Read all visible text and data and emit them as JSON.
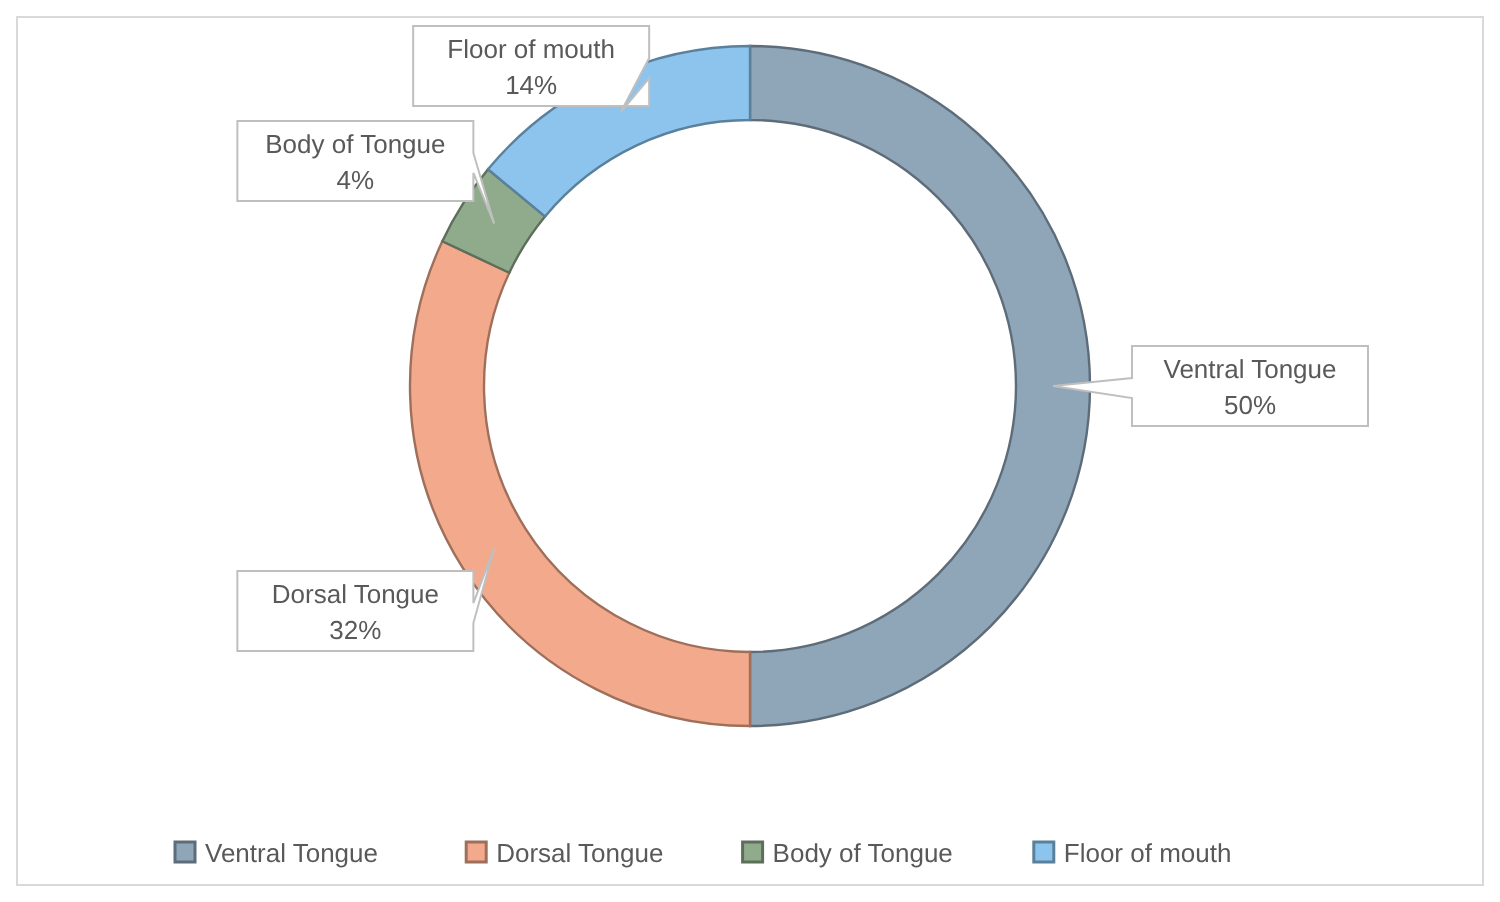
{
  "chart_data": {
    "type": "donut",
    "categories": [
      "Ventral Tongue",
      "Dorsal Tongue",
      "Body of Tongue",
      "Floor of mouth"
    ],
    "values": [
      50,
      32,
      4,
      14
    ],
    "colors": [
      "#8fa5b8",
      "#f3aa8c",
      "#8fab8c",
      "#8cc4ee"
    ],
    "value_labels": [
      "50%",
      "32%",
      "4%",
      "14%"
    ],
    "legend": "bottom"
  }
}
